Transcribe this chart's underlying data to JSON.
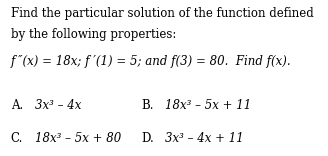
{
  "background_color": "#ffffff",
  "text_color": "#000000",
  "title_line1": "Find the particular solution of the function defined",
  "title_line2": "by the following properties:",
  "problem_normal": "f ″(x) = 18x; f ′(1) = 5; and f(3) = 80.  Find f(x).",
  "options": [
    {
      "label": "A.",
      "text": "3x³ – 4x"
    },
    {
      "label": "B.",
      "text": "18x³ – 5x + 11"
    },
    {
      "label": "C.",
      "text": "18x³ – 5x + 80"
    },
    {
      "label": "D.",
      "text": "3x³ – 4x + 11"
    }
  ],
  "font_size_body": 8.5,
  "font_size_options": 8.5,
  "font_family": "serif"
}
